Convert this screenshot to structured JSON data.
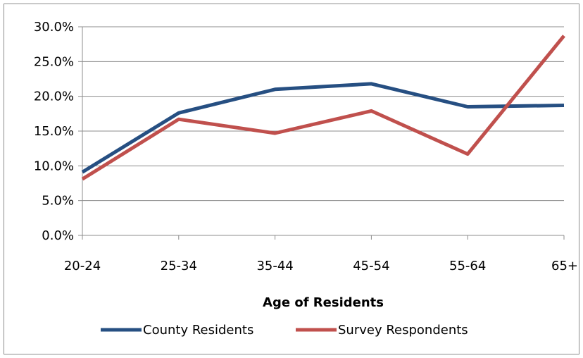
{
  "chart_data": {
    "type": "line",
    "categories": [
      "20-24",
      "25-34",
      "35-44",
      "45-54",
      "55-64",
      "65+"
    ],
    "series": [
      {
        "name": "County Residents",
        "color": "#264F82",
        "values": [
          9.1,
          17.6,
          21.0,
          21.8,
          18.5,
          18.7
        ]
      },
      {
        "name": "Survey Respondents",
        "color": "#C0504D",
        "values": [
          8.1,
          16.7,
          14.7,
          17.9,
          11.7,
          28.7
        ]
      }
    ],
    "title": "",
    "xlabel": "Age of Residents",
    "ylabel": "",
    "ylim": [
      0,
      30
    ],
    "ytick_step": 5,
    "ytick_labels": [
      "0.0%",
      "5.0%",
      "10.0%",
      "15.0%",
      "20.0%",
      "25.0%",
      "30.0%"
    ],
    "grid": true,
    "legend": "bottom"
  }
}
